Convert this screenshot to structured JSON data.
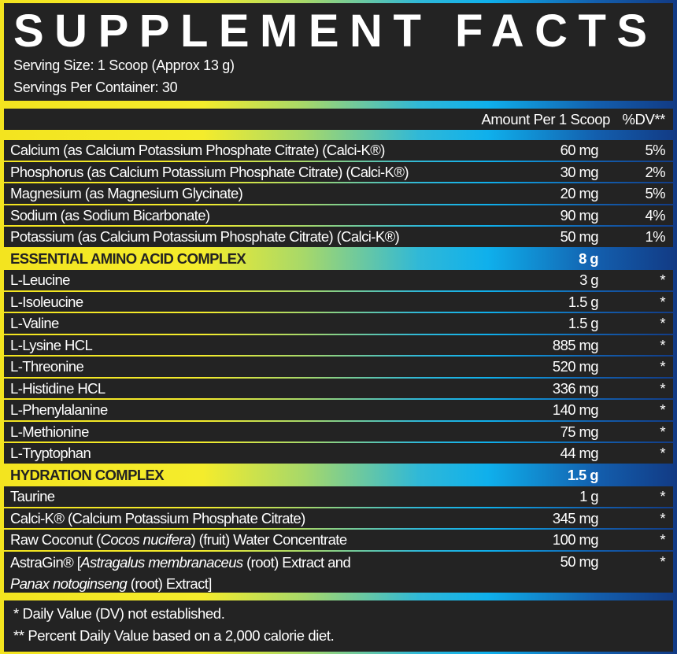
{
  "title": "SUPPLEMENT FACTS",
  "serving_size": "Serving Size: 1 Scoop (Approx 13 g)",
  "servings_per_container": "Servings Per Container: 30",
  "header": {
    "amount": "Amount Per 1 Scoop",
    "dv": "%DV**"
  },
  "minerals": [
    {
      "name": [
        {
          "t": "Calcium (as Calcium Potassium Phosphate Citrate) (Calci-K®)"
        }
      ],
      "amount": "60 mg",
      "dv": "5%"
    },
    {
      "name": [
        {
          "t": "Phosphorus (as Calcium Potassium Phosphate Citrate) (Calci-K®)"
        }
      ],
      "amount": "30 mg",
      "dv": "2%"
    },
    {
      "name": [
        {
          "t": "Magnesium (as Magnesium Glycinate)"
        }
      ],
      "amount": "20 mg",
      "dv": "5%"
    },
    {
      "name": [
        {
          "t": "Sodium (as Sodium Bicarbonate)"
        }
      ],
      "amount": "90 mg",
      "dv": "4%"
    },
    {
      "name": [
        {
          "t": "Potassium (as Calcium Potassium Phosphate Citrate) (Calci-K®)"
        }
      ],
      "amount": "50 mg",
      "dv": "1%"
    }
  ],
  "eaa": {
    "title": "ESSENTIAL AMINO ACID COMPLEX",
    "amount": "8 g",
    "items": [
      {
        "name": [
          {
            "t": "L-Leucine"
          }
        ],
        "amount": "3 g",
        "dv": "*"
      },
      {
        "name": [
          {
            "t": "L-Isoleucine"
          }
        ],
        "amount": "1.5 g",
        "dv": "*"
      },
      {
        "name": [
          {
            "t": "L-Valine"
          }
        ],
        "amount": "1.5 g",
        "dv": "*"
      },
      {
        "name": [
          {
            "t": "L-Lysine HCL"
          }
        ],
        "amount": "885 mg",
        "dv": "*"
      },
      {
        "name": [
          {
            "t": "L-Threonine"
          }
        ],
        "amount": "520 mg",
        "dv": "*"
      },
      {
        "name": [
          {
            "t": "L-Histidine HCL"
          }
        ],
        "amount": "336 mg",
        "dv": "*"
      },
      {
        "name": [
          {
            "t": "L-Phenylalanine"
          }
        ],
        "amount": "140 mg",
        "dv": "*"
      },
      {
        "name": [
          {
            "t": "L-Methionine"
          }
        ],
        "amount": "75 mg",
        "dv": "*"
      },
      {
        "name": [
          {
            "t": "L-Tryptophan"
          }
        ],
        "amount": "44 mg",
        "dv": "*"
      }
    ]
  },
  "hydration": {
    "title": "HYDRATION COMPLEX",
    "amount": "1.5 g",
    "items": [
      {
        "name": [
          {
            "t": "Taurine"
          }
        ],
        "amount": "1 g",
        "dv": "*"
      },
      {
        "name": [
          {
            "t": "Calci-K® (Calcium Potassium Phosphate Citrate)"
          }
        ],
        "amount": "345 mg",
        "dv": "*"
      },
      {
        "name": [
          {
            "t": "Raw Coconut ("
          },
          {
            "t": "Cocos nucifera",
            "i": true
          },
          {
            "t": ") (fruit) Water Concentrate"
          }
        ],
        "amount": "100 mg",
        "dv": "*"
      },
      {
        "name": [
          {
            "t": "AstraGin® ["
          },
          {
            "t": "Astragalus membranaceus",
            "i": true
          },
          {
            "t": " (root) Extract and"
          },
          {
            "br": true
          },
          {
            "t": "Panax notoginseng",
            "i": true
          },
          {
            "t": " (root) Extract]"
          }
        ],
        "amount": "50 mg",
        "dv": "*"
      }
    ]
  },
  "footnotes": [
    "* Daily Value (DV) not established.",
    "** Percent Daily Value based on a 2,000 calorie diet."
  ]
}
